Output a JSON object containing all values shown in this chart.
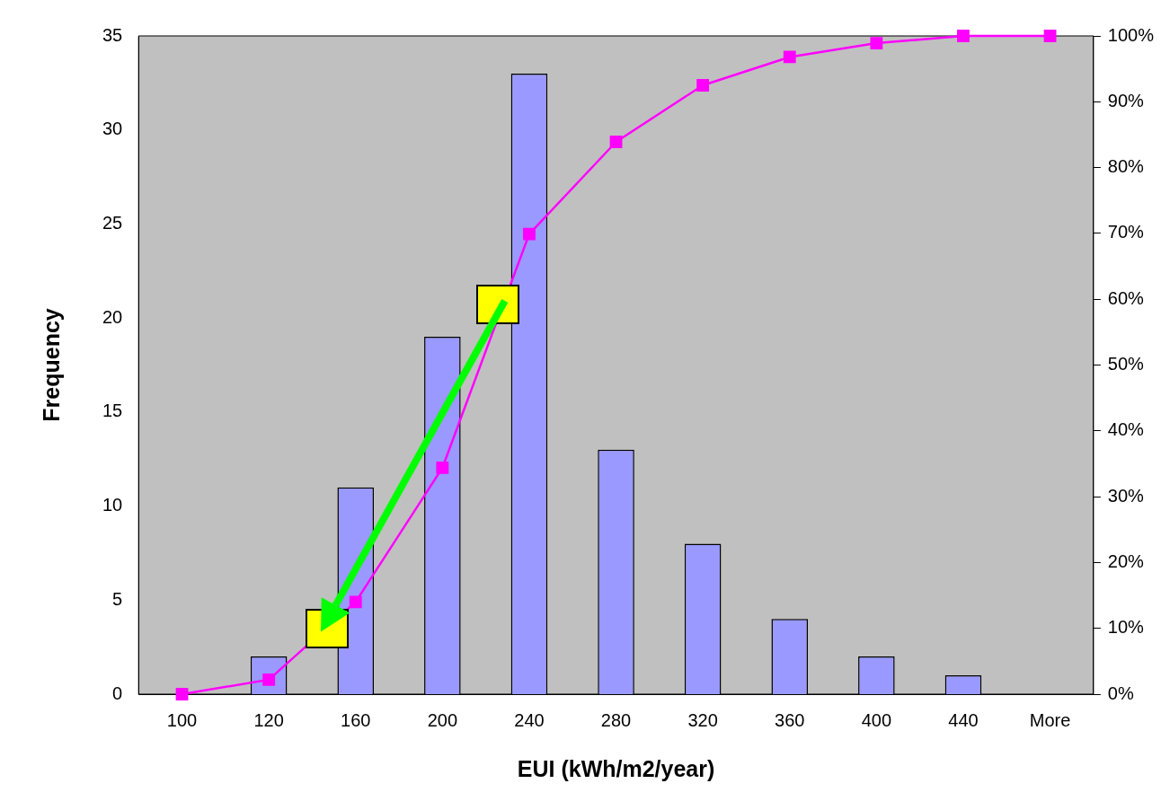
{
  "chart_data": {
    "type": "bar",
    "xlabel": "EUI (kWh/m2/year)",
    "ylabel": "Frequency",
    "categories": [
      "100",
      "120",
      "160",
      "200",
      "240",
      "280",
      "320",
      "360",
      "400",
      "440",
      "More"
    ],
    "series": [
      {
        "color": "#9999ff",
        "values": [
          0,
          2,
          11,
          19,
          33,
          13,
          8,
          4,
          2,
          1,
          0
        ]
      },
      {
        "type": "line",
        "axis": "y2",
        "color": "#ff00ff",
        "marker": "square",
        "values": [
          0,
          2.2,
          14,
          34.4,
          69.9,
          83.9,
          92.5,
          96.8,
          98.9,
          100,
          100
        ]
      }
    ],
    "ylim": [
      0,
      35
    ],
    "yticks": [
      0,
      5,
      10,
      15,
      20,
      25,
      30,
      35
    ],
    "y2lim": [
      0,
      100
    ],
    "y2ticks": [
      {
        "value": 0,
        "label": "0%"
      },
      {
        "value": 10,
        "label": "10%"
      },
      {
        "value": 20,
        "label": "20%"
      },
      {
        "value": 30,
        "label": "30%"
      },
      {
        "value": 40,
        "label": "40%"
      },
      {
        "value": 50,
        "label": "50%"
      },
      {
        "value": 60,
        "label": "60%"
      },
      {
        "value": 70,
        "label": "70%"
      },
      {
        "value": 80,
        "label": "80%"
      },
      {
        "value": 90,
        "label": "90%"
      },
      {
        "value": 100,
        "label": "100%"
      }
    ],
    "grid": false,
    "legend": false
  }
}
